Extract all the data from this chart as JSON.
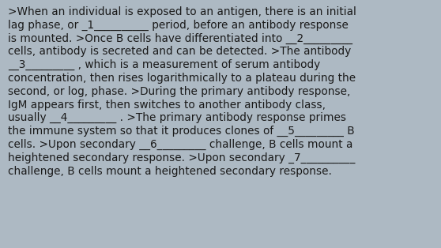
{
  "background_color": "#adb9c3",
  "text_color": "#1a1a1a",
  "font_size": 9.8,
  "font_family": "DejaVu Sans",
  "lines": [
    ">When an individual is exposed to an antigen, there is an initial",
    "lag phase, or _1__________ period, before an antibody response",
    "is mounted. >Once B cells have differentiated into __2_________",
    "cells, antibody is secreted and can be detected. >The antibody",
    "__3_________ , which is a measurement of serum antibody",
    "concentration, then rises logarithmically to a plateau during the",
    "second, or log, phase. >During the primary antibody response,",
    "IgM appears first, then switches to another antibody class,",
    "usually __4_________ . >The primary antibody response primes",
    "the immune system so that it produces clones of __5_________ B",
    "cells. >Upon secondary __6_________ challenge, B cells mount a",
    "heightened secondary response. >Upon secondary _7__________",
    "challenge, B cells mount a heightened secondary response."
  ],
  "figwidth": 5.58,
  "figheight": 3.14,
  "dpi": 100
}
